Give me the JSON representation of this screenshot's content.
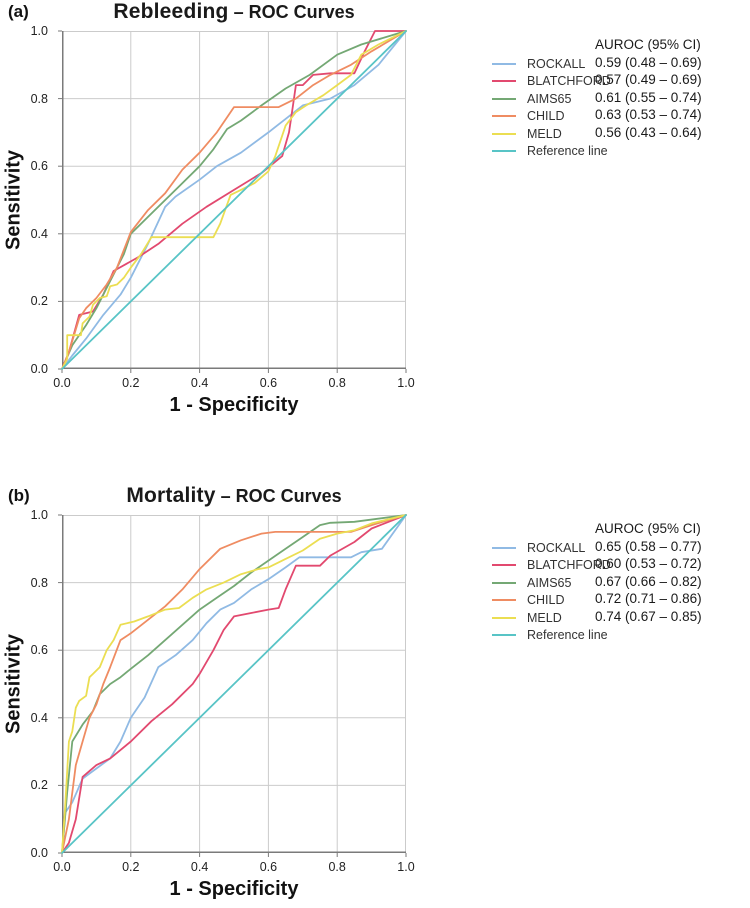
{
  "chart_data": [
    {
      "type": "line",
      "panel_label": "(a)",
      "title": "Rebleeding – ROC Curves",
      "title_main": "Rebleeding",
      "title_suffix": "– ROC Curves",
      "xlabel": "1 - Specificity",
      "ylabel": "Sensitivity",
      "xlim": [
        0,
        1
      ],
      "ylim": [
        0,
        1
      ],
      "xtick_labels": [
        "0.0",
        "0.2",
        "0.4",
        "0.6",
        "0.8",
        "1.0"
      ],
      "ytick_labels": [
        "0.0",
        "0.2",
        "0.4",
        "0.6",
        "0.8",
        "1.0"
      ],
      "grid": true,
      "legend_position": "right",
      "legend_header": "AUROC (95% CI)",
      "colors": {
        "grid": "#cbcbcb",
        "axis": "#7a7a7a"
      },
      "series": [
        {
          "name": "ROCKALL",
          "color": "#90BAE4",
          "auroc": "0.59 (0.48 – 0.69)",
          "points": [
            [
              0,
              0
            ],
            [
              0.03,
              0.04
            ],
            [
              0.07,
              0.09
            ],
            [
              0.12,
              0.16
            ],
            [
              0.17,
              0.22
            ],
            [
              0.2,
              0.27
            ],
            [
              0.25,
              0.37
            ],
            [
              0.3,
              0.48
            ],
            [
              0.33,
              0.51
            ],
            [
              0.4,
              0.56
            ],
            [
              0.45,
              0.6
            ],
            [
              0.52,
              0.64
            ],
            [
              0.6,
              0.7
            ],
            [
              0.65,
              0.74
            ],
            [
              0.7,
              0.78
            ],
            [
              0.78,
              0.8
            ],
            [
              0.85,
              0.84
            ],
            [
              0.92,
              0.9
            ],
            [
              1,
              1
            ]
          ]
        },
        {
          "name": "BLATCHFORD",
          "color": "#E2496F",
          "auroc": "0.57 (0.49 – 0.69)",
          "points": [
            [
              0,
              0
            ],
            [
              0.02,
              0.05
            ],
            [
              0.05,
              0.16
            ],
            [
              0.09,
              0.17
            ],
            [
              0.12,
              0.22
            ],
            [
              0.15,
              0.29
            ],
            [
              0.22,
              0.33
            ],
            [
              0.28,
              0.37
            ],
            [
              0.35,
              0.43
            ],
            [
              0.42,
              0.48
            ],
            [
              0.5,
              0.53
            ],
            [
              0.58,
              0.58
            ],
            [
              0.64,
              0.63
            ],
            [
              0.66,
              0.7
            ],
            [
              0.67,
              0.77
            ],
            [
              0.68,
              0.84
            ],
            [
              0.7,
              0.84
            ],
            [
              0.73,
              0.87
            ],
            [
              0.78,
              0.875
            ],
            [
              0.85,
              0.875
            ],
            [
              0.88,
              0.94
            ],
            [
              0.91,
              1
            ],
            [
              1,
              1
            ]
          ]
        },
        {
          "name": "AIMS65",
          "color": "#74A874",
          "auroc": "0.61 (0.55 – 0.74)",
          "points": [
            [
              0,
              0
            ],
            [
              0.03,
              0.07
            ],
            [
              0.07,
              0.13
            ],
            [
              0.1,
              0.18
            ],
            [
              0.13,
              0.24
            ],
            [
              0.15,
              0.28
            ],
            [
              0.18,
              0.34
            ],
            [
              0.2,
              0.4
            ],
            [
              0.25,
              0.45
            ],
            [
              0.3,
              0.5
            ],
            [
              0.35,
              0.55
            ],
            [
              0.4,
              0.6
            ],
            [
              0.44,
              0.65
            ],
            [
              0.48,
              0.71
            ],
            [
              0.52,
              0.735
            ],
            [
              0.58,
              0.78
            ],
            [
              0.65,
              0.83
            ],
            [
              0.72,
              0.87
            ],
            [
              0.8,
              0.93
            ],
            [
              0.87,
              0.96
            ],
            [
              1,
              1
            ]
          ]
        },
        {
          "name": "CHILD",
          "color": "#EF8C62",
          "auroc": "0.63 (0.53 – 0.74)",
          "points": [
            [
              0,
              0
            ],
            [
              0.02,
              0.05
            ],
            [
              0.05,
              0.15
            ],
            [
              0.07,
              0.18
            ],
            [
              0.1,
              0.21
            ],
            [
              0.13,
              0.25
            ],
            [
              0.16,
              0.3
            ],
            [
              0.2,
              0.405
            ],
            [
              0.25,
              0.47
            ],
            [
              0.3,
              0.52
            ],
            [
              0.35,
              0.59
            ],
            [
              0.4,
              0.64
            ],
            [
              0.45,
              0.7
            ],
            [
              0.5,
              0.775
            ],
            [
              0.63,
              0.775
            ],
            [
              0.68,
              0.8
            ],
            [
              0.73,
              0.84
            ],
            [
              0.78,
              0.87
            ],
            [
              0.84,
              0.9
            ],
            [
              0.9,
              0.94
            ],
            [
              1,
              1
            ]
          ]
        },
        {
          "name": "MELD",
          "color": "#EBDE52",
          "auroc": "0.56 (0.43 – 0.64)",
          "points": [
            [
              0,
              0
            ],
            [
              0.015,
              0.03
            ],
            [
              0.015,
              0.1
            ],
            [
              0.055,
              0.1
            ],
            [
              0.06,
              0.135
            ],
            [
              0.08,
              0.155
            ],
            [
              0.09,
              0.19
            ],
            [
              0.11,
              0.21
            ],
            [
              0.13,
              0.215
            ],
            [
              0.14,
              0.245
            ],
            [
              0.16,
              0.25
            ],
            [
              0.18,
              0.27
            ],
            [
              0.2,
              0.3
            ],
            [
              0.23,
              0.34
            ],
            [
              0.26,
              0.39
            ],
            [
              0.44,
              0.39
            ],
            [
              0.46,
              0.43
            ],
            [
              0.49,
              0.515
            ],
            [
              0.52,
              0.53
            ],
            [
              0.56,
              0.55
            ],
            [
              0.6,
              0.585
            ],
            [
              0.62,
              0.63
            ],
            [
              0.65,
              0.72
            ],
            [
              0.68,
              0.76
            ],
            [
              0.71,
              0.78
            ],
            [
              0.76,
              0.81
            ],
            [
              0.8,
              0.84
            ],
            [
              0.84,
              0.87
            ],
            [
              0.87,
              0.93
            ],
            [
              0.92,
              0.96
            ],
            [
              1,
              1
            ]
          ]
        },
        {
          "name": "Reference line",
          "color": "#58C4C6",
          "auroc": null,
          "points": [
            [
              0,
              0
            ],
            [
              1,
              1
            ]
          ]
        }
      ]
    },
    {
      "type": "line",
      "panel_label": "(b)",
      "title": "Mortality – ROC Curves",
      "title_main": "Mortality",
      "title_suffix": "– ROC Curves",
      "xlabel": "1 - Specificity",
      "ylabel": "Sensitivity",
      "xlim": [
        0,
        1
      ],
      "ylim": [
        0,
        1
      ],
      "xtick_labels": [
        "0.0",
        "0.2",
        "0.4",
        "0.6",
        "0.8",
        "1.0"
      ],
      "ytick_labels": [
        "0.0",
        "0.2",
        "0.4",
        "0.6",
        "0.8",
        "1.0"
      ],
      "grid": true,
      "legend_position": "right",
      "legend_header": "AUROC (95% CI)",
      "colors": {
        "grid": "#cbcbcb",
        "axis": "#7a7a7a"
      },
      "series": [
        {
          "name": "ROCKALL",
          "color": "#90BAE4",
          "auroc": "0.65 (0.58 – 0.77)",
          "points": [
            [
              0,
              0
            ],
            [
              0.01,
              0.12
            ],
            [
              0.03,
              0.15
            ],
            [
              0.06,
              0.22
            ],
            [
              0.1,
              0.25
            ],
            [
              0.14,
              0.28
            ],
            [
              0.17,
              0.33
            ],
            [
              0.2,
              0.4
            ],
            [
              0.24,
              0.46
            ],
            [
              0.28,
              0.55
            ],
            [
              0.33,
              0.585
            ],
            [
              0.38,
              0.63
            ],
            [
              0.42,
              0.68
            ],
            [
              0.46,
              0.72
            ],
            [
              0.5,
              0.74
            ],
            [
              0.55,
              0.78
            ],
            [
              0.6,
              0.81
            ],
            [
              0.65,
              0.845
            ],
            [
              0.69,
              0.875
            ],
            [
              0.84,
              0.875
            ],
            [
              0.87,
              0.89
            ],
            [
              0.93,
              0.9
            ],
            [
              1,
              1
            ]
          ]
        },
        {
          "name": "BLATCHFORD",
          "color": "#E2496F",
          "auroc": "0.60 (0.53 – 0.72)",
          "points": [
            [
              0,
              0
            ],
            [
              0.02,
              0.03
            ],
            [
              0.04,
              0.1
            ],
            [
              0.06,
              0.225
            ],
            [
              0.1,
              0.26
            ],
            [
              0.14,
              0.28
            ],
            [
              0.2,
              0.33
            ],
            [
              0.26,
              0.39
            ],
            [
              0.32,
              0.44
            ],
            [
              0.38,
              0.5
            ],
            [
              0.4,
              0.53
            ],
            [
              0.44,
              0.6
            ],
            [
              0.47,
              0.66
            ],
            [
              0.5,
              0.7
            ],
            [
              0.55,
              0.71
            ],
            [
              0.6,
              0.72
            ],
            [
              0.63,
              0.725
            ],
            [
              0.65,
              0.78
            ],
            [
              0.68,
              0.85
            ],
            [
              0.75,
              0.85
            ],
            [
              0.78,
              0.88
            ],
            [
              0.85,
              0.92
            ],
            [
              0.9,
              0.96
            ],
            [
              1,
              1
            ]
          ]
        },
        {
          "name": "AIMS65",
          "color": "#74A874",
          "auroc": "0.67 (0.66 – 0.82)",
          "points": [
            [
              0,
              0
            ],
            [
              0.015,
              0.18
            ],
            [
              0.03,
              0.33
            ],
            [
              0.06,
              0.38
            ],
            [
              0.09,
              0.42
            ],
            [
              0.11,
              0.47
            ],
            [
              0.14,
              0.5
            ],
            [
              0.17,
              0.52
            ],
            [
              0.2,
              0.545
            ],
            [
              0.25,
              0.585
            ],
            [
              0.3,
              0.63
            ],
            [
              0.35,
              0.675
            ],
            [
              0.4,
              0.72
            ],
            [
              0.45,
              0.755
            ],
            [
              0.5,
              0.79
            ],
            [
              0.55,
              0.83
            ],
            [
              0.6,
              0.865
            ],
            [
              0.65,
              0.9
            ],
            [
              0.7,
              0.935
            ],
            [
              0.75,
              0.97
            ],
            [
              0.78,
              0.977
            ],
            [
              0.85,
              0.98
            ],
            [
              1,
              1
            ]
          ]
        },
        {
          "name": "CHILD",
          "color": "#EF8C62",
          "auroc": "0.72 (0.71 – 0.86)",
          "points": [
            [
              0,
              0
            ],
            [
              0.02,
              0.1
            ],
            [
              0.04,
              0.26
            ],
            [
              0.06,
              0.33
            ],
            [
              0.08,
              0.4
            ],
            [
              0.1,
              0.44
            ],
            [
              0.12,
              0.5
            ],
            [
              0.14,
              0.55
            ],
            [
              0.17,
              0.63
            ],
            [
              0.2,
              0.65
            ],
            [
              0.25,
              0.69
            ],
            [
              0.3,
              0.73
            ],
            [
              0.35,
              0.78
            ],
            [
              0.4,
              0.84
            ],
            [
              0.46,
              0.9
            ],
            [
              0.52,
              0.925
            ],
            [
              0.58,
              0.945
            ],
            [
              0.62,
              0.95
            ],
            [
              0.84,
              0.95
            ],
            [
              0.9,
              0.97
            ],
            [
              1,
              1
            ]
          ]
        },
        {
          "name": "MELD",
          "color": "#EBDE52",
          "auroc": "0.74 (0.67 – 0.85)",
          "points": [
            [
              0,
              0
            ],
            [
              0.01,
              0.15
            ],
            [
              0.02,
              0.33
            ],
            [
              0.03,
              0.36
            ],
            [
              0.04,
              0.43
            ],
            [
              0.05,
              0.45
            ],
            [
              0.07,
              0.465
            ],
            [
              0.08,
              0.52
            ],
            [
              0.09,
              0.53
            ],
            [
              0.11,
              0.55
            ],
            [
              0.13,
              0.6
            ],
            [
              0.15,
              0.63
            ],
            [
              0.17,
              0.675
            ],
            [
              0.21,
              0.685
            ],
            [
              0.25,
              0.7
            ],
            [
              0.3,
              0.72
            ],
            [
              0.34,
              0.725
            ],
            [
              0.38,
              0.755
            ],
            [
              0.42,
              0.78
            ],
            [
              0.47,
              0.8
            ],
            [
              0.52,
              0.825
            ],
            [
              0.57,
              0.84
            ],
            [
              0.6,
              0.845
            ],
            [
              0.65,
              0.87
            ],
            [
              0.7,
              0.895
            ],
            [
              0.75,
              0.93
            ],
            [
              0.8,
              0.945
            ],
            [
              0.85,
              0.955
            ],
            [
              0.9,
              0.975
            ],
            [
              1,
              1
            ]
          ]
        },
        {
          "name": "Reference line",
          "color": "#58C4C6",
          "auroc": null,
          "points": [
            [
              0,
              0
            ],
            [
              1,
              1
            ]
          ]
        }
      ]
    }
  ]
}
